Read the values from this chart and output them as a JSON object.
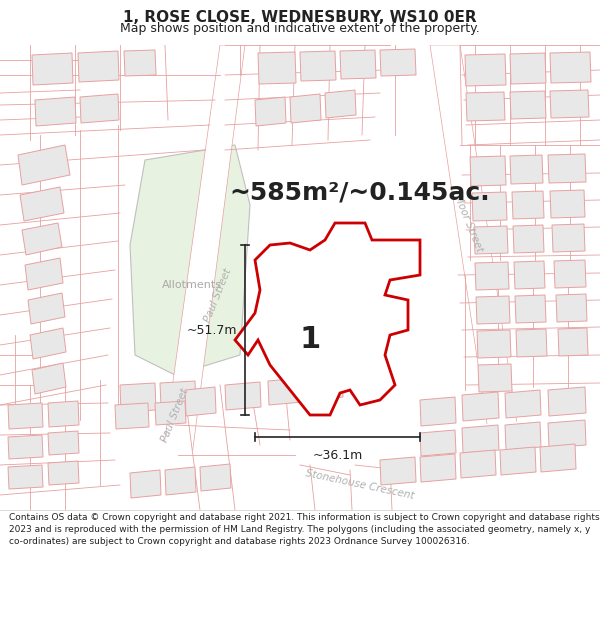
{
  "title": "1, ROSE CLOSE, WEDNESBURY, WS10 0ER",
  "subtitle": "Map shows position and indicative extent of the property.",
  "area_text": "~585m²/~0.145ac.",
  "dim_horizontal": "~36.1m",
  "dim_vertical": "~51.7m",
  "property_label": "1",
  "allotments_label": "Allotments",
  "street_paul": "Paul Street",
  "street_moor": "Moor Street",
  "street_storehouse": "Stonehouse Crescent",
  "footer": "Contains OS data © Crown copyright and database right 2021. This information is subject to Crown copyright and database rights 2023 and is reproduced with the permission of HM Land Registry. The polygons (including the associated geometry, namely x, y co-ordinates) are subject to Crown copyright and database rights 2023 Ordnance Survey 100026316.",
  "map_bg": "#ffffff",
  "parcel_line": "#e8a0a0",
  "building_fill": "#e8e8e8",
  "building_edge": "#e8a0a0",
  "allotment_fill": "#e8f2e0",
  "allotment_edge": "#c0c0c0",
  "property_edge": "#cc0000",
  "property_fill": "#ffffff",
  "road_fill": "#ffffff",
  "dim_line_color": "#222222",
  "text_dark": "#222222",
  "street_label_color": "#b0b0b0",
  "title_fontsize": 11,
  "subtitle_fontsize": 9,
  "area_fontsize": 18,
  "footer_fontsize": 6.5
}
